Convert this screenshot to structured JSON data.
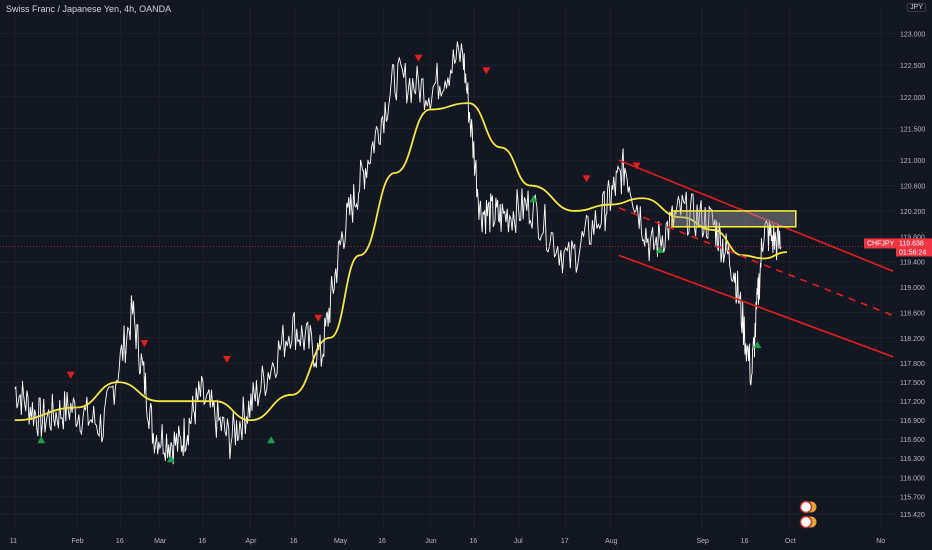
{
  "header": {
    "title": "Swiss Franc / Japanese Yen, 4h, OANDA",
    "symbol_button": "JPY"
  },
  "colors": {
    "background": "#131722",
    "price": "#ffffff",
    "ma": "#f5e642",
    "channel": "#e01f1f",
    "box": "#f5e642",
    "sell": "#e01f1f",
    "buy": "#1e9e4a",
    "axis_text": "#b2b5be",
    "price_tag": "#f23645"
  },
  "price_tag": {
    "symbol": "CHFJPY",
    "price": "119.638",
    "countdown": "01:56:24"
  },
  "chart_data": {
    "type": "line",
    "title": "Swiss Franc / Japanese Yen, 4h, OANDA",
    "ylim": [
      115.2,
      123.4
    ],
    "y_ticks": [
      "123.000",
      "122.500",
      "122.000",
      "121.500",
      "121.000",
      "120.600",
      "120.200",
      "119.800",
      "119.400",
      "119.000",
      "118.600",
      "118.200",
      "117.800",
      "117.500",
      "117.200",
      "116.900",
      "116.600",
      "116.300",
      "116.000",
      "115.700",
      "115.420"
    ],
    "y_tick_values": [
      123.0,
      122.5,
      122.0,
      121.5,
      121.0,
      120.6,
      120.2,
      119.8,
      119.4,
      119.0,
      118.6,
      118.2,
      117.8,
      117.5,
      117.2,
      116.9,
      116.6,
      116.3,
      116.0,
      115.7,
      115.42
    ],
    "x_labels": [
      "11",
      "Feb",
      "16",
      "Mar",
      "16",
      "Apr",
      "16",
      "May",
      "16",
      "Jun",
      "16",
      "Jul",
      "17",
      "Aug",
      "Sep",
      "16",
      "Oct",
      "No"
    ],
    "x_label_dates": [
      "2023-01-11",
      "2023-02-01",
      "2023-02-16",
      "2023-03-01",
      "2023-03-16",
      "2023-04-01",
      "2023-04-16",
      "2023-05-01",
      "2023-05-16",
      "2023-06-01",
      "2023-06-16",
      "2023-07-01",
      "2023-07-17",
      "2023-08-01",
      "2023-09-01",
      "2023-09-16",
      "2023-10-01",
      "2023-11-01"
    ],
    "series": [
      {
        "x": [
          "2023-01-11",
          "2023-01-20",
          "2023-01-30",
          "2023-02-10",
          "2023-02-20",
          "2023-02-27",
          "2023-03-08",
          "2023-03-15",
          "2023-03-25",
          "2023-04-03",
          "2023-04-15",
          "2023-04-25",
          "2023-05-02",
          "2023-05-10",
          "2023-05-20",
          "2023-06-01",
          "2023-06-12",
          "2023-06-18",
          "2023-06-25",
          "2023-07-05",
          "2023-07-18",
          "2023-07-30",
          "2023-08-06",
          "2023-08-15",
          "2023-08-25",
          "2023-09-05",
          "2023-09-12",
          "2023-09-18",
          "2023-09-22",
          "2023-09-28"
        ],
        "y": [
          117.4,
          116.9,
          117.1,
          116.8,
          118.6,
          116.7,
          116.5,
          117.3,
          116.6,
          117.3,
          118.4,
          117.9,
          119.8,
          120.9,
          122.3,
          122.1,
          122.7,
          120.2,
          120.1,
          120.3,
          119.4,
          120.2,
          120.9,
          119.6,
          120.2,
          120.0,
          119.3,
          117.6,
          119.9,
          119.64
        ]
      },
      {
        "x": [
          "2023-01-11",
          "2023-02-01",
          "2023-02-15",
          "2023-03-01",
          "2023-03-20",
          "2023-04-01",
          "2023-04-15",
          "2023-04-28",
          "2023-05-08",
          "2023-05-20",
          "2023-06-01",
          "2023-06-14",
          "2023-06-25",
          "2023-07-05",
          "2023-07-20",
          "2023-08-01",
          "2023-08-12",
          "2023-08-25",
          "2023-09-05",
          "2023-09-15",
          "2023-09-22",
          "2023-09-30"
        ],
        "y": [
          116.9,
          117.1,
          117.5,
          117.2,
          117.2,
          116.9,
          117.3,
          118.2,
          119.5,
          120.8,
          121.8,
          121.9,
          121.2,
          120.6,
          120.2,
          120.3,
          120.4,
          120.1,
          119.9,
          119.5,
          119.45,
          119.55
        ]
      }
    ],
    "channel_lines": [
      {
        "from": [
          "2023-08-04",
          121.0
        ],
        "to": [
          "2023-11-05",
          119.25
        ]
      },
      {
        "from": [
          "2023-08-04",
          120.25
        ],
        "to": [
          "2023-11-05",
          118.55
        ],
        "dashed": true
      },
      {
        "from": [
          "2023-08-04",
          119.5
        ],
        "to": [
          "2023-11-05",
          117.9
        ]
      }
    ],
    "zone": {
      "x": [
        "2023-08-22",
        "2023-10-03"
      ],
      "y": [
        119.95,
        120.2
      ]
    }
  }
}
